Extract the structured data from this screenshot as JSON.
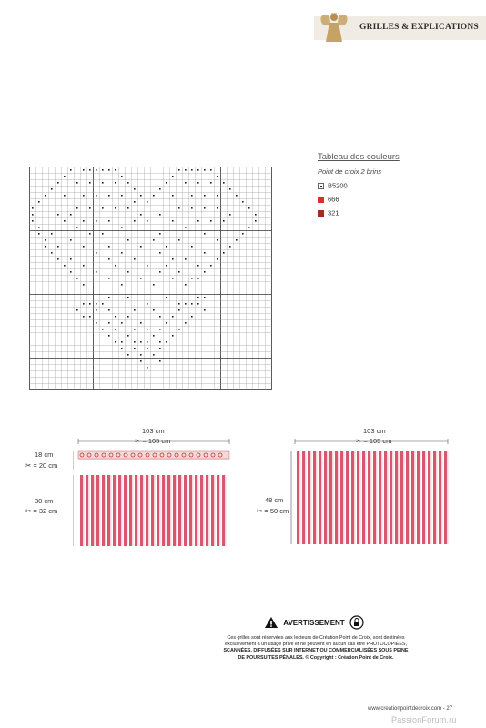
{
  "header": {
    "section_title": "GRILLES & EXPLICATIONS",
    "brand_color": "#c6a264"
  },
  "legend": {
    "title": "Tableau des couleurs",
    "subtitle": "Point de croix 2 brins",
    "items": [
      {
        "symbol": "dot",
        "label": "B5200",
        "color": "#ffffff"
      },
      {
        "symbol": "fill",
        "label": "666",
        "color": "#d9312a"
      },
      {
        "symbol": "fill",
        "label": "321",
        "color": "#a52a22"
      }
    ]
  },
  "chart_grid": {
    "cols": 38,
    "rows": 35,
    "dots": [
      [
        0,
        6
      ],
      [
        0,
        8
      ],
      [
        0,
        9
      ],
      [
        0,
        10
      ],
      [
        0,
        11
      ],
      [
        0,
        12
      ],
      [
        0,
        13
      ],
      [
        0,
        23
      ],
      [
        0,
        24
      ],
      [
        0,
        25
      ],
      [
        0,
        26
      ],
      [
        0,
        27
      ],
      [
        0,
        28
      ],
      [
        1,
        5
      ],
      [
        1,
        14
      ],
      [
        1,
        22
      ],
      [
        1,
        29
      ],
      [
        2,
        4
      ],
      [
        2,
        7
      ],
      [
        2,
        9
      ],
      [
        2,
        11
      ],
      [
        2,
        13
      ],
      [
        2,
        15
      ],
      [
        2,
        21
      ],
      [
        2,
        24
      ],
      [
        2,
        26
      ],
      [
        2,
        28
      ],
      [
        2,
        30
      ],
      [
        3,
        3
      ],
      [
        3,
        16
      ],
      [
        3,
        20
      ],
      [
        3,
        31
      ],
      [
        4,
        2
      ],
      [
        4,
        5
      ],
      [
        4,
        8
      ],
      [
        4,
        10
      ],
      [
        4,
        12
      ],
      [
        4,
        14
      ],
      [
        4,
        17
      ],
      [
        4,
        19
      ],
      [
        4,
        22
      ],
      [
        4,
        25
      ],
      [
        4,
        27
      ],
      [
        4,
        29
      ],
      [
        4,
        32
      ],
      [
        5,
        1
      ],
      [
        5,
        16
      ],
      [
        5,
        18
      ],
      [
        5,
        33
      ],
      [
        6,
        0
      ],
      [
        6,
        7
      ],
      [
        6,
        9
      ],
      [
        6,
        11
      ],
      [
        6,
        13
      ],
      [
        6,
        15
      ],
      [
        6,
        23
      ],
      [
        6,
        25
      ],
      [
        6,
        27
      ],
      [
        6,
        29
      ],
      [
        6,
        34
      ],
      [
        7,
        0
      ],
      [
        7,
        4
      ],
      [
        7,
        6
      ],
      [
        7,
        17
      ],
      [
        7,
        20
      ],
      [
        7,
        31
      ],
      [
        7,
        35
      ],
      [
        8,
        0
      ],
      [
        8,
        5
      ],
      [
        8,
        8
      ],
      [
        8,
        10
      ],
      [
        8,
        12
      ],
      [
        8,
        16
      ],
      [
        8,
        18
      ],
      [
        8,
        22
      ],
      [
        8,
        26
      ],
      [
        8,
        28
      ],
      [
        8,
        30
      ],
      [
        8,
        35
      ],
      [
        9,
        1
      ],
      [
        9,
        7
      ],
      [
        9,
        14
      ],
      [
        9,
        24
      ],
      [
        9,
        34
      ],
      [
        10,
        1
      ],
      [
        10,
        3
      ],
      [
        10,
        9
      ],
      [
        10,
        11
      ],
      [
        10,
        20
      ],
      [
        10,
        27
      ],
      [
        10,
        33
      ],
      [
        11,
        2
      ],
      [
        11,
        6
      ],
      [
        11,
        15
      ],
      [
        11,
        19
      ],
      [
        11,
        23
      ],
      [
        11,
        29
      ],
      [
        11,
        32
      ],
      [
        12,
        2
      ],
      [
        12,
        4
      ],
      [
        12,
        8
      ],
      [
        12,
        12
      ],
      [
        12,
        17
      ],
      [
        12,
        21
      ],
      [
        12,
        25
      ],
      [
        12,
        31
      ],
      [
        13,
        3
      ],
      [
        13,
        10
      ],
      [
        13,
        14
      ],
      [
        13,
        20
      ],
      [
        13,
        27
      ],
      [
        13,
        30
      ],
      [
        14,
        4
      ],
      [
        14,
        6
      ],
      [
        14,
        12
      ],
      [
        14,
        16
      ],
      [
        14,
        22
      ],
      [
        14,
        24
      ],
      [
        14,
        29
      ],
      [
        15,
        5
      ],
      [
        15,
        8
      ],
      [
        15,
        13
      ],
      [
        15,
        18
      ],
      [
        15,
        21
      ],
      [
        15,
        26
      ],
      [
        15,
        28
      ],
      [
        16,
        6
      ],
      [
        16,
        10
      ],
      [
        16,
        15
      ],
      [
        16,
        20
      ],
      [
        16,
        23
      ],
      [
        16,
        27
      ],
      [
        17,
        7
      ],
      [
        17,
        12
      ],
      [
        17,
        17
      ],
      [
        17,
        22
      ],
      [
        17,
        25
      ],
      [
        17,
        26
      ],
      [
        18,
        8
      ],
      [
        18,
        14
      ],
      [
        18,
        19
      ],
      [
        18,
        24
      ],
      [
        20,
        12
      ],
      [
        20,
        15
      ],
      [
        20,
        21
      ],
      [
        20,
        26
      ],
      [
        20,
        27
      ],
      [
        21,
        8
      ],
      [
        21,
        9
      ],
      [
        21,
        10
      ],
      [
        21,
        11
      ],
      [
        21,
        18
      ],
      [
        21,
        23
      ],
      [
        21,
        24
      ],
      [
        21,
        25
      ],
      [
        21,
        26
      ],
      [
        22,
        7
      ],
      [
        22,
        10
      ],
      [
        22,
        12
      ],
      [
        22,
        16
      ],
      [
        22,
        19
      ],
      [
        22,
        23
      ],
      [
        22,
        27
      ],
      [
        23,
        8
      ],
      [
        23,
        9
      ],
      [
        23,
        13
      ],
      [
        23,
        15
      ],
      [
        23,
        20
      ],
      [
        23,
        22
      ],
      [
        23,
        25
      ],
      [
        24,
        10
      ],
      [
        24,
        12
      ],
      [
        24,
        14
      ],
      [
        24,
        17
      ],
      [
        24,
        21
      ],
      [
        24,
        24
      ],
      [
        25,
        11
      ],
      [
        25,
        13
      ],
      [
        25,
        16
      ],
      [
        25,
        18
      ],
      [
        25,
        20
      ],
      [
        25,
        23
      ],
      [
        26,
        12
      ],
      [
        26,
        15
      ],
      [
        26,
        19
      ],
      [
        26,
        22
      ],
      [
        27,
        13
      ],
      [
        27,
        14
      ],
      [
        27,
        16
      ],
      [
        27,
        17
      ],
      [
        27,
        18
      ],
      [
        27,
        20
      ],
      [
        27,
        21
      ],
      [
        28,
        14
      ],
      [
        28,
        16
      ],
      [
        28,
        18
      ],
      [
        28,
        20
      ],
      [
        29,
        15
      ],
      [
        29,
        17
      ],
      [
        29,
        19
      ],
      [
        30,
        17
      ],
      [
        30,
        20
      ],
      [
        31,
        18
      ]
    ]
  },
  "diagram_left": {
    "width_label": "103 cm",
    "width_cut_label": "✂ = 105 cm",
    "top_height_label": "18 cm",
    "top_cut_label": "✂ = 20 cm",
    "bottom_height_label": "30 cm",
    "bottom_cut_label": "✂ = 32 cm",
    "stripe_color": "#d9566f"
  },
  "diagram_right": {
    "width_label": "103 cm",
    "width_cut_label": "✂ = 105 cm",
    "height_label": "48 cm",
    "height_cut_label": "✂ = 50 cm",
    "stripe_color": "#d9566f"
  },
  "warning": {
    "title": "AVERTISSEMENT",
    "lines": [
      "Ces grilles sont réservées aux lecteurs de Création Point de Croix, sont destinées",
      "exclusivement à un usage privé et ne peuvent en aucun cas être PHOTOCOPIÉES,",
      "SCANNÉES, DIFFUSÉES SUR INTERNET OU COMMERCIALISÉES SOUS PEINE",
      "DE POURSUITES PÉNALES. © Copyright : Création Point de Croix."
    ]
  },
  "footer": {
    "url_page": "www.creationpointdecroix.com - 27",
    "watermark": "PassionForum.ru"
  }
}
